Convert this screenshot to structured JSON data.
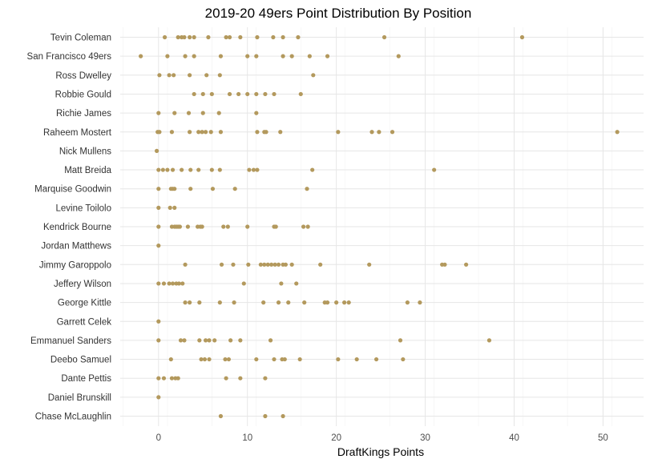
{
  "chart_data": {
    "type": "scatter",
    "title": "2019-20 49ers Point Distribution By Position",
    "xlabel": "DraftKings Points",
    "ylabel": "",
    "xlim": [
      -4,
      54
    ],
    "xticks": [
      0,
      10,
      20,
      30,
      40,
      50
    ],
    "grid": true,
    "legend": "none",
    "point_color": "#B3995D",
    "categories": [
      "Tevin Coleman",
      "San Francisco 49ers",
      "Ross Dwelley",
      "Robbie Gould",
      "Richie James",
      "Raheem Mostert",
      "Nick Mullens",
      "Matt Breida",
      "Marquise Goodwin",
      "Levine Toilolo",
      "Kendrick Bourne",
      "Jordan Matthews",
      "Jimmy Garoppolo",
      "Jeffery Wilson",
      "George Kittle",
      "Garrett Celek",
      "Emmanuel Sanders",
      "Deebo Samuel",
      "Dante Pettis",
      "Daniel Brunskill",
      "Chase McLaughlin"
    ],
    "points": [
      {
        "category": "Tevin Coleman",
        "values": [
          0.7,
          2.2,
          2.6,
          2.9,
          3.5,
          4.0,
          5.6,
          7.6,
          8.0,
          9.2,
          11.1,
          12.9,
          14.0,
          15.7,
          25.4,
          40.9
        ]
      },
      {
        "category": "San Francisco 49ers",
        "values": [
          -2.0,
          1.0,
          3.0,
          4.0,
          7.0,
          10.0,
          11.0,
          14.0,
          15.0,
          17.0,
          19.0,
          27.0
        ]
      },
      {
        "category": "Ross Dwelley",
        "values": [
          0.1,
          1.2,
          1.7,
          3.5,
          5.4,
          6.9,
          17.4
        ]
      },
      {
        "category": "Robbie Gould",
        "values": [
          4.0,
          5.0,
          6.0,
          8.0,
          9.0,
          10.0,
          11.0,
          12.0,
          13.0,
          16.0
        ]
      },
      {
        "category": "Richie James",
        "values": [
          0.0,
          1.8,
          3.4,
          5.0,
          6.8,
          11.0
        ]
      },
      {
        "category": "Raheem Mostert",
        "values": [
          -0.1,
          0.1,
          1.5,
          3.5,
          4.5,
          4.9,
          5.3,
          5.9,
          7.0,
          11.1,
          11.9,
          12.1,
          13.7,
          20.2,
          24.0,
          24.8,
          26.3,
          51.6
        ]
      },
      {
        "category": "Nick Mullens",
        "values": [
          -0.2
        ]
      },
      {
        "category": "Matt Breida",
        "values": [
          0.0,
          0.5,
          1.0,
          1.6,
          2.6,
          3.6,
          4.5,
          6.0,
          6.9,
          10.2,
          10.7,
          11.1,
          17.3,
          31.0
        ]
      },
      {
        "category": "Marquise Goodwin",
        "values": [
          0.0,
          1.4,
          1.6,
          1.8,
          3.6,
          6.1,
          8.6,
          16.7
        ]
      },
      {
        "category": "Levine Toilolo",
        "values": [
          0.0,
          1.3,
          1.8
        ]
      },
      {
        "category": "Kendrick Bourne",
        "values": [
          0.0,
          1.5,
          1.8,
          2.0,
          2.2,
          2.4,
          3.3,
          4.4,
          4.7,
          4.9,
          7.3,
          7.8,
          10.0,
          13.0,
          13.2,
          16.3,
          16.8
        ]
      },
      {
        "category": "Jordan Matthews",
        "values": [
          0.0
        ]
      },
      {
        "category": "Jimmy Garoppolo",
        "values": [
          3.0,
          7.1,
          8.4,
          10.1,
          11.5,
          11.9,
          12.3,
          12.7,
          13.1,
          13.5,
          14.0,
          14.3,
          15.0,
          18.2,
          23.7,
          31.9,
          32.2,
          34.6
        ]
      },
      {
        "category": "Jeffery Wilson",
        "values": [
          0.0,
          0.6,
          1.2,
          1.6,
          2.0,
          2.3,
          2.7,
          9.6,
          13.8,
          15.5
        ]
      },
      {
        "category": "George Kittle",
        "values": [
          3.0,
          3.5,
          4.6,
          6.9,
          8.5,
          11.8,
          13.5,
          14.6,
          16.4,
          18.7,
          19.0,
          20.0,
          20.9,
          21.4,
          28.0,
          29.4
        ]
      },
      {
        "category": "Garrett Celek",
        "values": [
          0.0
        ]
      },
      {
        "category": "Emmanuel Sanders",
        "values": [
          0.0,
          2.5,
          2.9,
          4.6,
          5.3,
          5.7,
          6.3,
          8.1,
          9.2,
          12.6,
          27.2,
          37.2
        ]
      },
      {
        "category": "Deebo Samuel",
        "values": [
          1.4,
          4.8,
          5.2,
          5.7,
          7.5,
          7.9,
          11.0,
          13.0,
          13.9,
          14.2,
          15.9,
          20.2,
          22.3,
          24.5,
          27.5
        ]
      },
      {
        "category": "Dante Pettis",
        "values": [
          0.0,
          0.6,
          1.5,
          1.9,
          2.2,
          7.6,
          9.2,
          12.0
        ]
      },
      {
        "category": "Daniel Brunskill",
        "values": [
          0.0
        ]
      },
      {
        "category": "Chase McLaughlin",
        "values": [
          7.0,
          12.0,
          14.0
        ]
      }
    ]
  }
}
